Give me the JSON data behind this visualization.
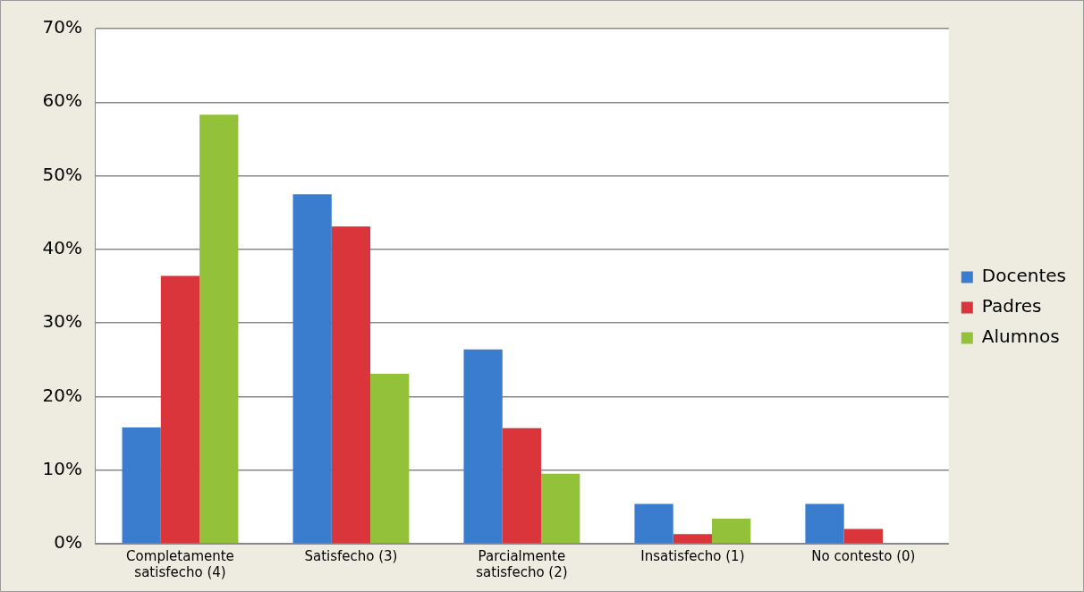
{
  "chart_data": {
    "type": "bar",
    "categories": [
      "Completamente satisfecho (4)",
      "Satisfecho (3)",
      "Parcialmente satisfecho (2)",
      "Insatisfecho (1)",
      "No contesto (0)"
    ],
    "series": [
      {
        "name": "Docentes",
        "color": "#3a7dcf",
        "values": [
          15.8,
          47.5,
          26.4,
          5.4,
          5.4
        ]
      },
      {
        "name": "Padres",
        "color": "#d9353a",
        "values": [
          36.4,
          43.1,
          15.7,
          1.3,
          2.0
        ]
      },
      {
        "name": "Alumnos",
        "color": "#94c13a",
        "values": [
          58.3,
          23.1,
          9.5,
          3.4,
          0
        ]
      }
    ],
    "ylim": [
      0,
      70
    ],
    "yticks": [
      {
        "value": 0,
        "label": "0%"
      },
      {
        "value": 10,
        "label": "10%"
      },
      {
        "value": 20,
        "label": "20%"
      },
      {
        "value": 30,
        "label": "30%"
      },
      {
        "value": 40,
        "label": "40%"
      },
      {
        "value": 50,
        "label": "50%"
      },
      {
        "value": 60,
        "label": "60%"
      },
      {
        "value": 70,
        "label": "70%"
      }
    ],
    "grid": "y",
    "legend": "right"
  }
}
